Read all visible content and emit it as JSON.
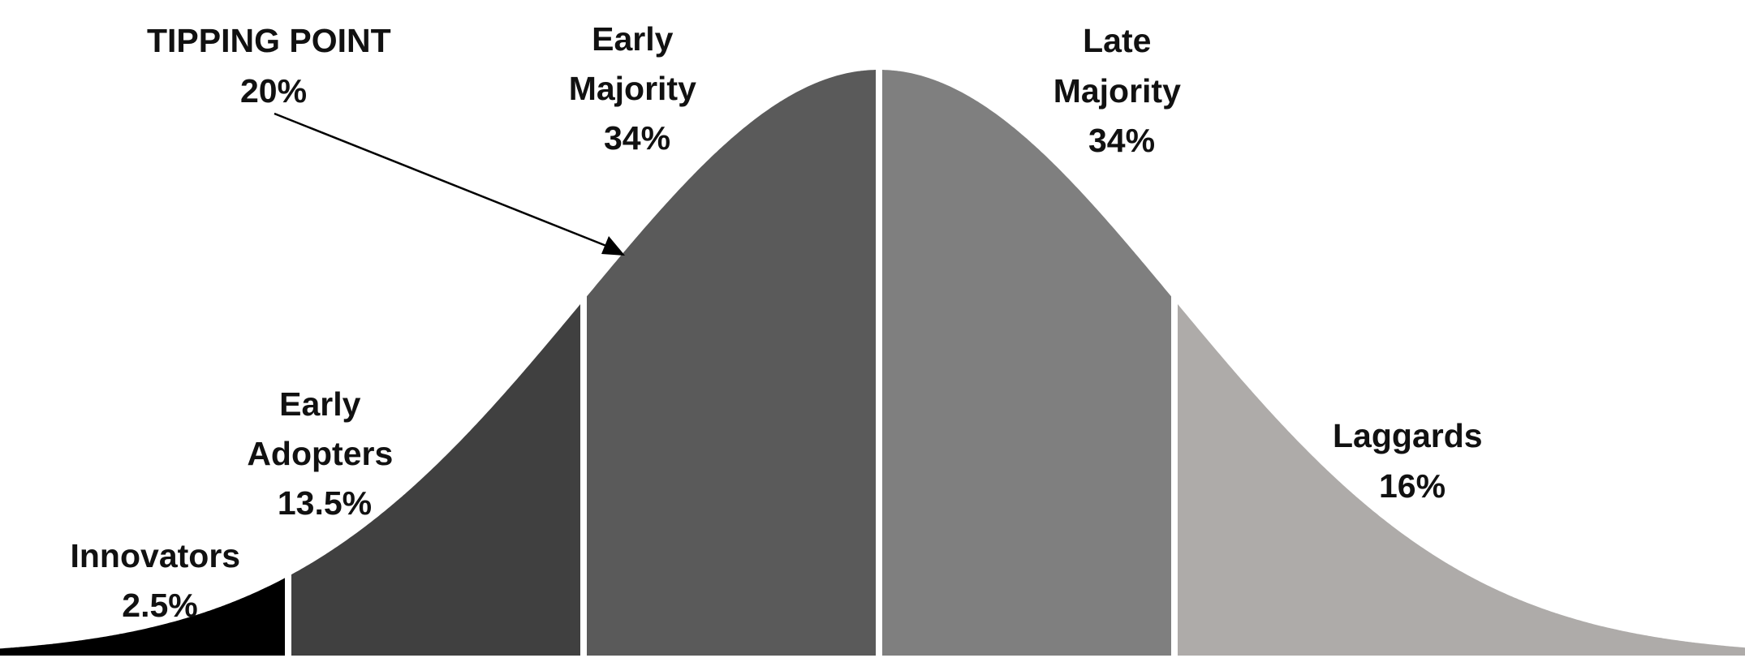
{
  "diagram": {
    "segments": [
      {
        "name": "Innovators",
        "pct": "2.5%",
        "color": "#000000"
      },
      {
        "name": "Early Adopters",
        "pct": "13.5%",
        "color": "#404040"
      },
      {
        "name": "Early Majority",
        "pct": "34%",
        "color": "#5a5a5a"
      },
      {
        "name": "Late Majority",
        "pct": "34%",
        "color": "#7f7f7f"
      },
      {
        "name": "Laggards",
        "pct": "16%",
        "color": "#aeaba9"
      }
    ],
    "labels": {
      "innovators": [
        "Innovators",
        "2.5%"
      ],
      "early_adopters": [
        "Early",
        "Adopters",
        "13.5%"
      ],
      "early_majority": [
        "Early",
        "Majority",
        "34%"
      ],
      "late_majority": [
        "Late",
        "Majority",
        "34%"
      ],
      "laggards": [
        "Laggards",
        "16%"
      ]
    },
    "tipping_point": {
      "title": "TIPPING POINT",
      "value": "20%"
    },
    "colors": {
      "divider": "#ffffff",
      "text": "#111111",
      "arrow": "#000000"
    }
  }
}
